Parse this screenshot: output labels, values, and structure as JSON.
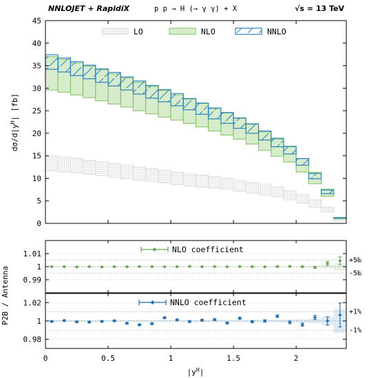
{
  "header": {
    "left": "NNLOJET + RapidiX",
    "center": "p p → H (→ γ γ) + X",
    "right": "√s = 13 TeV"
  },
  "colors": {
    "lo": "#cccccc",
    "nlo": "#7fbf5f",
    "nnlo": "#2b83c0",
    "nlo_point": "#6aa84f",
    "nnlo_point": "#1f6fb2"
  },
  "chart_data": [
    {
      "type": "area",
      "panel": "main",
      "ylabel": "dσ/d|y",
      "ylabel_sup": "H",
      "ylabel_tail": "| [fb]",
      "xlim": [
        0,
        2.4
      ],
      "ylim": [
        0,
        45
      ],
      "yticks": [
        0,
        5,
        10,
        15,
        20,
        25,
        30,
        35,
        40,
        45
      ],
      "yticklabels": [
        "0",
        "5",
        "10",
        "15",
        "20",
        "25",
        "30",
        "35",
        "40",
        "45"
      ],
      "grid": false,
      "legend": [
        "LO",
        "NLO",
        "NNLO"
      ],
      "legend_position": "top",
      "bin_edges": [
        0,
        0.1,
        0.2,
        0.3,
        0.4,
        0.5,
        0.6,
        0.7,
        0.8,
        0.9,
        1.0,
        1.1,
        1.2,
        1.3,
        1.4,
        1.5,
        1.6,
        1.7,
        1.8,
        1.9,
        2.0,
        2.1,
        2.2,
        2.3,
        2.4
      ],
      "series": [
        {
          "name": "LO",
          "low": [
            11.6,
            11.4,
            11.2,
            10.9,
            10.6,
            10.2,
            9.9,
            9.6,
            9.3,
            9.0,
            8.6,
            8.3,
            8.0,
            7.8,
            7.5,
            7.1,
            6.7,
            6.3,
            5.9,
            5.2,
            4.5,
            3.5,
            2.5,
            0.5
          ],
          "high": [
            15.0,
            14.7,
            14.4,
            14.0,
            13.7,
            13.3,
            12.9,
            12.5,
            12.1,
            11.8,
            11.4,
            11.0,
            10.7,
            10.4,
            10.0,
            9.6,
            9.1,
            8.7,
            8.1,
            7.3,
            6.4,
            5.2,
            3.6,
            0.8
          ]
        },
        {
          "name": "NLO",
          "low": [
            29.6,
            29.1,
            28.5,
            27.9,
            27.2,
            26.5,
            25.8,
            25.0,
            24.3,
            23.6,
            22.9,
            22.2,
            21.4,
            20.5,
            19.6,
            18.7,
            17.6,
            16.2,
            14.9,
            13.6,
            11.4,
            8.8,
            6.0,
            1.0
          ],
          "high": [
            37.0,
            36.4,
            35.6,
            34.9,
            34.1,
            33.2,
            32.3,
            31.3,
            30.4,
            29.5,
            28.5,
            27.6,
            26.6,
            25.5,
            24.5,
            23.3,
            22.0,
            20.3,
            18.7,
            17.0,
            14.4,
            11.3,
            7.6,
            1.3
          ]
        },
        {
          "name": "NNLO",
          "low": [
            34.2,
            33.6,
            32.8,
            32.1,
            31.3,
            30.5,
            29.6,
            28.7,
            27.8,
            27.0,
            26.1,
            25.2,
            24.2,
            23.2,
            22.2,
            21.1,
            20.0,
            18.5,
            17.0,
            15.4,
            12.9,
            9.9,
            6.6,
            1.2
          ],
          "high": [
            37.4,
            36.7,
            35.9,
            35.1,
            34.3,
            33.5,
            32.5,
            31.6,
            30.6,
            29.7,
            28.8,
            27.7,
            26.7,
            25.6,
            24.6,
            23.4,
            22.1,
            20.5,
            18.9,
            17.1,
            14.4,
            11.1,
            7.4,
            1.3
          ]
        }
      ]
    },
    {
      "type": "scatter",
      "panel": "ratio1",
      "ylabel": "P2B / Antenna",
      "ylim": [
        0.98,
        1.02
      ],
      "yticks": [
        0.99,
        1.0,
        1.01
      ],
      "yticklabels": [
        "0.99",
        "1",
        "1.01"
      ],
      "band_labels": [
        "+5‰",
        "-5‰"
      ],
      "band": [
        0.995,
        1.005
      ],
      "legend": [
        "NLO coefficient"
      ],
      "x": [
        0.05,
        0.15,
        0.25,
        0.35,
        0.45,
        0.55,
        0.65,
        0.75,
        0.85,
        0.95,
        1.05,
        1.15,
        1.25,
        1.35,
        1.45,
        1.55,
        1.65,
        1.75,
        1.85,
        1.95,
        2.05,
        2.15,
        2.25,
        2.35
      ],
      "values": [
        1.0,
        1.0,
        0.9998,
        1.0,
        0.9998,
        1.0,
        0.9999,
        1.0001,
        1.0,
        0.9999,
        1.0,
        1.0002,
        1.0,
        1.0001,
        0.9999,
        1.0001,
        1.0,
        0.9999,
        1.0001,
        1.0002,
        1.0,
        0.9995,
        1.0025,
        1.0045
      ],
      "errors": [
        0.0002,
        0.0002,
        0.0002,
        0.0002,
        0.0002,
        0.0002,
        0.0002,
        0.0002,
        0.0002,
        0.0002,
        0.0002,
        0.0002,
        0.0002,
        0.0002,
        0.0002,
        0.0002,
        0.0002,
        0.0002,
        0.0003,
        0.0003,
        0.0004,
        0.0007,
        0.0015,
        0.003
      ]
    },
    {
      "type": "scatter",
      "panel": "ratio2",
      "ylim": [
        0.97,
        1.03
      ],
      "yticks": [
        0.98,
        1.0,
        1.02
      ],
      "yticklabels": [
        "0.98",
        "1",
        "1.02"
      ],
      "band_labels": [
        "+1%",
        "-1%"
      ],
      "band": [
        0.99,
        1.01
      ],
      "xlabel": "|y",
      "xlabel_sup": "H",
      "xlabel_tail": "|",
      "xticks": [
        0,
        0.5,
        1,
        1.5,
        2
      ],
      "xticklabels": [
        "0",
        "0.5",
        "1",
        "1.5",
        "2"
      ],
      "legend": [
        "NNLO coefficient"
      ],
      "x": [
        0.05,
        0.15,
        0.25,
        0.35,
        0.45,
        0.55,
        0.65,
        0.75,
        0.85,
        0.95,
        1.05,
        1.15,
        1.25,
        1.35,
        1.45,
        1.55,
        1.65,
        1.75,
        1.85,
        1.95,
        2.05,
        2.15,
        2.25,
        2.35
      ],
      "values": [
        0.9995,
        1.0005,
        0.999,
        0.9988,
        0.9995,
        1.0002,
        0.9975,
        0.9958,
        0.997,
        1.0035,
        1.0012,
        0.9993,
        1.0008,
        1.0015,
        0.9978,
        1.003,
        0.9992,
        1.0,
        1.0052,
        0.9985,
        0.996,
        1.0038,
        1.0,
        1.0065
      ],
      "errors": [
        0.0008,
        0.0008,
        0.0008,
        0.0008,
        0.0008,
        0.0008,
        0.0008,
        0.0009,
        0.0009,
        0.0009,
        0.0009,
        0.0009,
        0.001,
        0.001,
        0.001,
        0.001,
        0.0011,
        0.0012,
        0.0013,
        0.0015,
        0.0017,
        0.0022,
        0.0045,
        0.013
      ]
    }
  ]
}
